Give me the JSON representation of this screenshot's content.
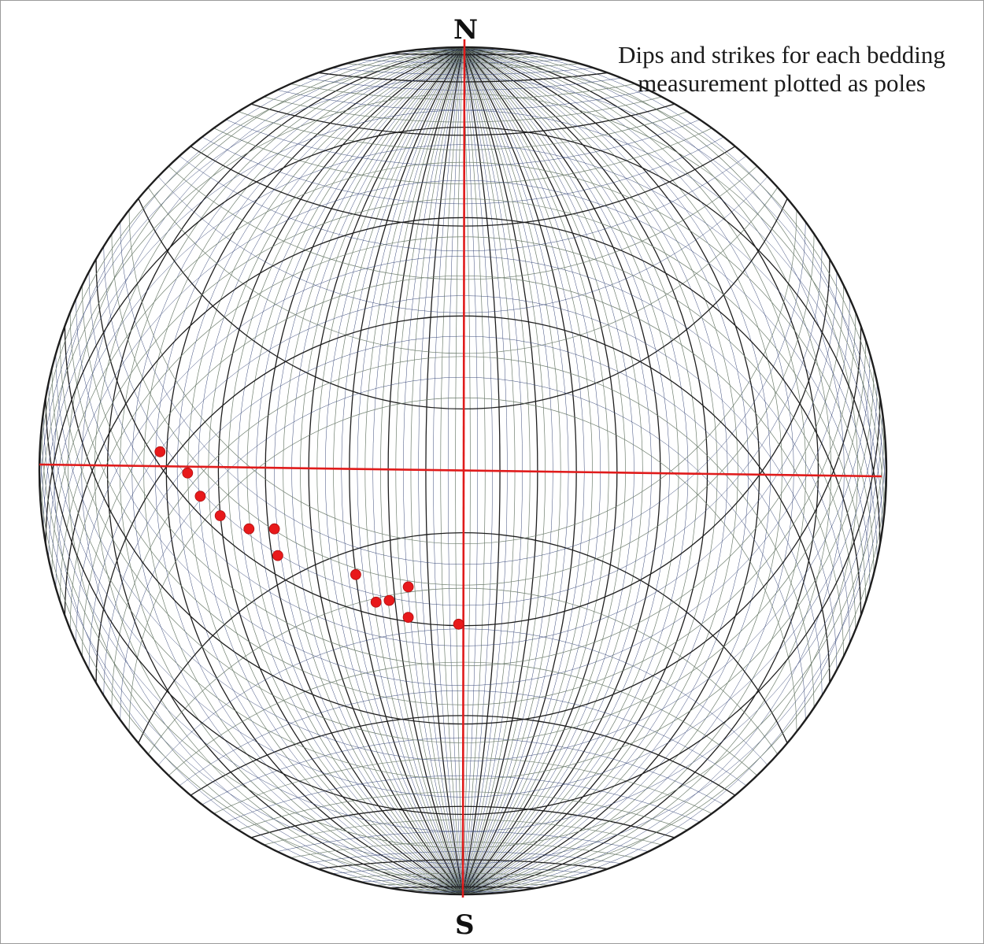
{
  "labels": {
    "north": "N",
    "south": "S",
    "caption": "Dips and strikes for each bedding measurement plotted as poles"
  },
  "colors": {
    "background": "#ffffff",
    "net_primary": "#1e1e1e",
    "net_secondary": "#6f7f6f",
    "net_tertiary": "#3a4a7a",
    "axis": "#e01b1b",
    "pole": "#e8191b"
  },
  "chart_data": {
    "type": "scatter",
    "title": "Dips and strikes for each bedding measurement plotted as poles",
    "net": "equal-angle stereonet",
    "grid_interval_deg": 2,
    "major_interval_deg": 10,
    "axes": [
      "N-S",
      "E-W"
    ],
    "x_range": [
      -1,
      1
    ],
    "y_range": [
      -1,
      1
    ],
    "poles": [
      {
        "x": -0.715,
        "y": 0.045
      },
      {
        "x": -0.65,
        "y": -0.005
      },
      {
        "x": -0.62,
        "y": -0.06
      },
      {
        "x": -0.573,
        "y": -0.106
      },
      {
        "x": -0.505,
        "y": -0.137
      },
      {
        "x": -0.445,
        "y": -0.137
      },
      {
        "x": -0.437,
        "y": -0.2
      },
      {
        "x": -0.253,
        "y": -0.245
      },
      {
        "x": -0.129,
        "y": -0.274
      },
      {
        "x": -0.205,
        "y": -0.31
      },
      {
        "x": -0.174,
        "y": -0.306
      },
      {
        "x": -0.129,
        "y": -0.346
      },
      {
        "x": -0.01,
        "y": -0.362
      }
    ]
  }
}
